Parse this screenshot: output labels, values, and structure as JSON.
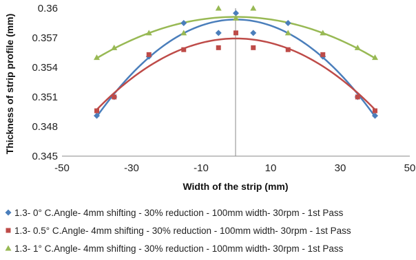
{
  "chart_data": {
    "type": "scatter",
    "title": "",
    "xlabel": "Width of the strip (mm)",
    "ylabel": "Thickness of strip profile (mm)",
    "xlim": [
      -50,
      50
    ],
    "ylim": [
      0.345,
      0.36
    ],
    "x_ticks": [
      -50,
      -30,
      -10,
      10,
      30,
      50
    ],
    "y_ticks": [
      0.345,
      0.348,
      0.351,
      0.354,
      0.357,
      0.36
    ],
    "x_tick_labels": [
      "-50",
      "-30",
      "-10",
      "10",
      "30",
      "50"
    ],
    "y_tick_labels": [
      "0.345",
      "0.348",
      "0.351",
      "0.354",
      "0.357",
      "0.36"
    ],
    "grid": false,
    "legend_position": "bottom",
    "trendline": "polynomial",
    "series": [
      {
        "name": "1.3- 0° C.Angle- 4mm shifting - 30% reduction - 100mm width- 30rpm - 1st Pass",
        "marker": "diamond",
        "color": "#4a7ebb",
        "x": [
          -40,
          -35,
          -25,
          -15,
          -5,
          0,
          5,
          15,
          25,
          35,
          40
        ],
        "y": [
          0.3491,
          0.351,
          0.3551,
          0.3585,
          0.3575,
          0.3595,
          0.3575,
          0.3585,
          0.3551,
          0.351,
          0.3491
        ]
      },
      {
        "name": "1.3- 0.5° C.Angle- 4mm shifting - 30% reduction - 100mm width- 30rpm - 1st Pass",
        "marker": "square",
        "color": "#be4b48",
        "x": [
          -40,
          -35,
          -25,
          -15,
          -5,
          0,
          5,
          15,
          25,
          35,
          40
        ],
        "y": [
          0.3496,
          0.351,
          0.3553,
          0.3558,
          0.356,
          0.3575,
          0.356,
          0.3558,
          0.3553,
          0.351,
          0.3496
        ]
      },
      {
        "name": "1.3- 1° C.Angle- 4mm shifting - 30% reduction - 100mm width- 30rpm - 1st Pass",
        "marker": "triangle",
        "color": "#98b954",
        "x": [
          -40,
          -35,
          -25,
          -15,
          -5,
          0,
          5,
          15,
          25,
          35,
          40
        ],
        "y": [
          0.355,
          0.356,
          0.3575,
          0.3575,
          0.36,
          0.359,
          0.36,
          0.3575,
          0.3575,
          0.356,
          0.355
        ]
      }
    ]
  }
}
